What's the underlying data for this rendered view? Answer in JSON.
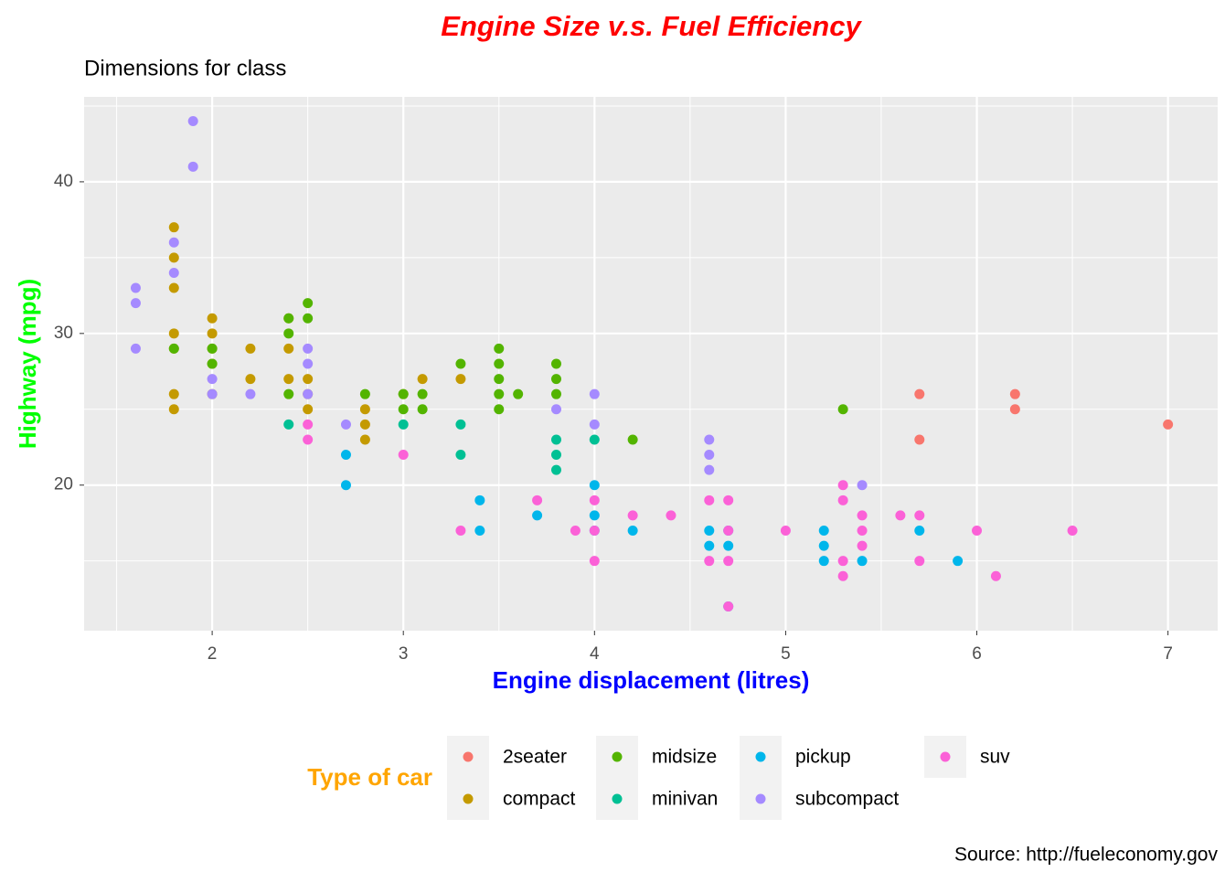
{
  "chart_data": {
    "type": "scatter",
    "title": "Engine Size v.s. Fuel Efficiency",
    "subtitle": "Dimensions for class",
    "x_label": "Engine displacement (litres)",
    "y_label": "Highway (mpg)",
    "legend_title": "Type of car",
    "caption": "Source: http://fueleconomy.gov",
    "legend_position": "bottom",
    "grid": true,
    "xlim": [
      1.33,
      7.26
    ],
    "ylim": [
      10.4,
      45.6
    ],
    "xticks": [
      2,
      3,
      4,
      5,
      6,
      7
    ],
    "yticks": [
      20,
      30,
      40
    ],
    "x_minor_breaks": [
      1.5,
      2.5,
      3.5,
      4.5,
      5.5,
      6.5
    ],
    "y_minor_breaks": [
      15,
      25,
      35,
      45
    ],
    "series": [
      {
        "name": "2seater",
        "color": "#F8766D",
        "x": [
          5.7,
          5.7,
          6.2,
          6.2,
          7.0
        ],
        "values": [
          26,
          23,
          26,
          25,
          24
        ]
      },
      {
        "name": "compact",
        "color": "#C49A00",
        "x": [
          1.8,
          1.8,
          1.8,
          1.8,
          1.8,
          1.8,
          1.8,
          2.0,
          2.0,
          2.0,
          2.0,
          2.0,
          2.2,
          2.2,
          2.4,
          2.4,
          2.4,
          2.5,
          2.5,
          2.5,
          2.8,
          2.8,
          2.8,
          3.0,
          3.1,
          3.3
        ],
        "values": [
          37,
          35,
          33,
          30,
          29,
          26,
          25,
          31,
          30,
          29,
          28,
          26,
          29,
          27,
          31,
          29,
          27,
          27,
          26,
          25,
          25,
          24,
          23,
          26,
          27,
          27
        ]
      },
      {
        "name": "midsize",
        "color": "#53B400",
        "x": [
          1.8,
          2.0,
          2.0,
          2.4,
          2.4,
          2.4,
          2.5,
          2.5,
          2.8,
          3.0,
          3.0,
          3.1,
          3.1,
          3.3,
          3.5,
          3.5,
          3.5,
          3.5,
          3.5,
          3.6,
          3.8,
          3.8,
          3.8,
          4.2,
          5.3
        ],
        "values": [
          29,
          29,
          28,
          31,
          30,
          26,
          32,
          31,
          26,
          26,
          25,
          26,
          25,
          28,
          29,
          28,
          27,
          26,
          25,
          26,
          28,
          27,
          26,
          23,
          25
        ]
      },
      {
        "name": "minivan",
        "color": "#00C094",
        "x": [
          2.4,
          3.0,
          3.3,
          3.3,
          3.8,
          3.8,
          3.8,
          4.0
        ],
        "values": [
          24,
          24,
          24,
          22,
          23,
          22,
          21,
          23
        ]
      },
      {
        "name": "pickup",
        "color": "#00B6EB",
        "x": [
          2.7,
          2.7,
          3.4,
          3.4,
          3.7,
          4.0,
          4.0,
          4.0,
          4.2,
          4.6,
          4.6,
          4.7,
          4.7,
          4.7,
          5.2,
          5.2,
          5.2,
          5.4,
          5.7,
          5.9
        ],
        "values": [
          22,
          20,
          19,
          17,
          18,
          20,
          18,
          17,
          17,
          17,
          16,
          17,
          16,
          12,
          17,
          16,
          15,
          15,
          17,
          15
        ]
      },
      {
        "name": "subcompact",
        "color": "#A58AFF",
        "x": [
          1.6,
          1.6,
          1.6,
          1.8,
          1.8,
          1.9,
          1.9,
          2.0,
          2.0,
          2.2,
          2.5,
          2.5,
          2.5,
          2.7,
          3.8,
          4.0,
          4.0,
          4.6,
          4.6,
          4.6,
          5.4
        ],
        "values": [
          33,
          32,
          29,
          36,
          34,
          44,
          41,
          27,
          26,
          26,
          29,
          28,
          26,
          24,
          25,
          26,
          24,
          23,
          22,
          21,
          20
        ]
      },
      {
        "name": "suv",
        "color": "#FB61D7",
        "x": [
          2.5,
          2.5,
          3.0,
          3.3,
          3.7,
          3.9,
          4.0,
          4.0,
          4.0,
          4.2,
          4.4,
          4.6,
          4.6,
          4.7,
          4.7,
          4.7,
          4.7,
          5.0,
          5.3,
          5.3,
          5.3,
          5.3,
          5.4,
          5.4,
          5.4,
          5.6,
          5.7,
          5.7,
          6.0,
          6.1,
          6.5
        ],
        "values": [
          24,
          23,
          22,
          17,
          19,
          17,
          19,
          17,
          15,
          18,
          18,
          19,
          15,
          19,
          17,
          15,
          12,
          17,
          20,
          19,
          15,
          14,
          18,
          17,
          16,
          18,
          18,
          15,
          17,
          14,
          17
        ]
      }
    ]
  }
}
